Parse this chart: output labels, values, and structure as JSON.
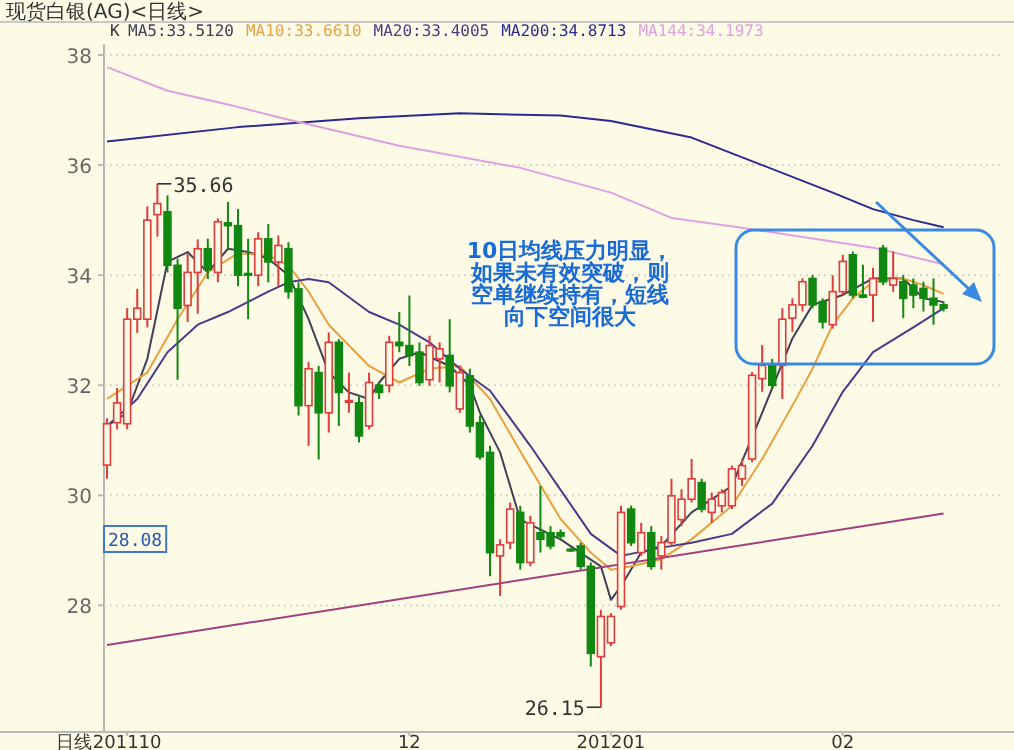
{
  "chart_data": {
    "type": "candlestick",
    "title": "现货白银(AG)<日线>",
    "xlabel": "日线",
    "categories": [
      null,
      null,
      "201110",
      null,
      null,
      null,
      null,
      null,
      null,
      null,
      null,
      null,
      null,
      null,
      null,
      null,
      null,
      null,
      null,
      null,
      null,
      null,
      null,
      null,
      null,
      null,
      null,
      null,
      null,
      null,
      "12",
      null,
      null,
      null,
      null,
      null,
      null,
      null,
      null,
      null,
      null,
      null,
      null,
      null,
      null,
      null,
      null,
      null,
      null,
      null,
      "201201",
      null,
      null,
      null,
      null,
      null,
      null,
      null,
      null,
      null,
      null,
      null,
      null,
      null,
      null,
      null,
      null,
      null,
      null,
      null,
      null,
      null,
      null,
      "02",
      null,
      null,
      null,
      null,
      null,
      null,
      null,
      null,
      null,
      null
    ],
    "ylim": [
      25.7,
      38.2
    ],
    "yticks": [
      28,
      30,
      32,
      34,
      36,
      38
    ],
    "grid": "y",
    "legend": "top left",
    "series": [
      {
        "ohlc": [
          [
            30.55,
            31.4,
            30.3,
            31.3
          ],
          [
            31.32,
            31.95,
            31.2,
            31.68
          ],
          [
            31.3,
            33.4,
            31.2,
            33.2
          ],
          [
            33.2,
            33.75,
            32.95,
            33.4
          ],
          [
            33.2,
            35.25,
            33.05,
            35.0
          ],
          [
            35.1,
            35.66,
            34.7,
            35.3
          ],
          [
            35.15,
            35.45,
            34.05,
            34.18
          ],
          [
            34.18,
            34.3,
            32.1,
            33.4
          ],
          [
            33.45,
            34.4,
            33.15,
            34.05
          ],
          [
            34.05,
            34.65,
            33.3,
            34.48
          ],
          [
            34.48,
            34.66,
            33.93,
            34.1
          ],
          [
            34.05,
            35.03,
            33.87,
            34.97
          ],
          [
            34.95,
            35.33,
            34.48,
            34.9
          ],
          [
            34.9,
            35.2,
            33.8,
            34.0
          ],
          [
            34.03,
            34.66,
            33.2,
            34.0
          ],
          [
            34.0,
            34.78,
            33.8,
            34.66
          ],
          [
            34.66,
            34.93,
            33.87,
            34.24
          ],
          [
            34.24,
            34.72,
            33.8,
            34.54
          ],
          [
            34.48,
            34.6,
            33.57,
            33.7
          ],
          [
            33.75,
            33.87,
            31.45,
            31.63
          ],
          [
            31.63,
            32.42,
            30.9,
            32.3
          ],
          [
            32.23,
            32.35,
            30.65,
            31.5
          ],
          [
            31.5,
            32.96,
            31.14,
            32.78
          ],
          [
            32.78,
            32.84,
            31.26,
            31.87
          ],
          [
            31.7,
            32.23,
            31.5,
            31.72
          ],
          [
            31.68,
            31.8,
            30.96,
            31.08
          ],
          [
            31.26,
            32.23,
            31.2,
            32.05
          ],
          [
            32.0,
            32.05,
            31.75,
            31.87
          ],
          [
            32.0,
            32.9,
            31.87,
            32.78
          ],
          [
            32.78,
            33.33,
            32.6,
            32.72
          ],
          [
            32.72,
            33.63,
            32.35,
            32.54
          ],
          [
            32.6,
            32.78,
            31.99,
            32.05
          ],
          [
            32.1,
            32.9,
            31.99,
            32.72
          ],
          [
            32.48,
            32.78,
            32.05,
            32.66
          ],
          [
            32.54,
            33.2,
            31.87,
            31.99
          ],
          [
            31.57,
            32.35,
            31.5,
            32.23
          ],
          [
            32.17,
            32.3,
            31.14,
            31.26
          ],
          [
            31.32,
            31.45,
            30.65,
            30.7
          ],
          [
            30.78,
            30.9,
            28.53,
            28.96
          ],
          [
            28.9,
            29.2,
            28.17,
            29.1
          ],
          [
            29.14,
            29.87,
            29.02,
            29.75
          ],
          [
            29.69,
            29.81,
            28.65,
            28.78
          ],
          [
            28.78,
            29.63,
            28.71,
            29.5
          ],
          [
            29.32,
            30.17,
            28.96,
            29.2
          ],
          [
            29.32,
            29.44,
            29.02,
            29.08
          ],
          [
            29.32,
            29.38,
            29.2,
            29.26
          ],
          [
            29.02,
            29.05,
            28.97,
            29.0
          ],
          [
            29.08,
            29.14,
            28.65,
            28.71
          ],
          [
            28.71,
            28.78,
            26.89,
            27.13
          ],
          [
            27.07,
            27.92,
            26.15,
            27.8
          ],
          [
            27.32,
            27.86,
            27.26,
            27.8
          ],
          [
            27.98,
            29.81,
            27.92,
            29.69
          ],
          [
            29.75,
            29.81,
            29.08,
            29.14
          ],
          [
            28.96,
            29.5,
            28.9,
            29.32
          ],
          [
            29.32,
            29.44,
            28.65,
            28.71
          ],
          [
            28.9,
            29.26,
            28.65,
            29.14
          ],
          [
            29.14,
            30.3,
            29.08,
            29.99
          ],
          [
            29.56,
            30.11,
            29.44,
            29.93
          ],
          [
            29.93,
            30.66,
            29.87,
            30.3
          ],
          [
            30.23,
            30.3,
            29.69,
            29.75
          ],
          [
            29.69,
            30.05,
            29.5,
            29.93
          ],
          [
            29.81,
            30.11,
            29.69,
            30.05
          ],
          [
            29.81,
            30.54,
            29.75,
            30.48
          ],
          [
            30.3,
            30.66,
            30.17,
            30.54
          ],
          [
            30.66,
            32.24,
            30.6,
            32.18
          ],
          [
            32.12,
            32.73,
            31.88,
            32.36
          ],
          [
            32.36,
            32.48,
            31.94,
            32.0
          ],
          [
            32.36,
            33.4,
            31.75,
            33.2
          ],
          [
            33.22,
            33.58,
            32.97,
            33.46
          ],
          [
            33.46,
            33.94,
            33.34,
            33.88
          ],
          [
            33.94,
            34.0,
            33.4,
            33.46
          ],
          [
            33.52,
            33.58,
            33.03,
            33.15
          ],
          [
            33.1,
            34.0,
            33.03,
            33.7
          ],
          [
            33.7,
            34.37,
            33.64,
            34.25
          ],
          [
            34.37,
            34.43,
            33.58,
            33.64
          ],
          [
            33.64,
            34.19,
            33.58,
            33.6
          ],
          [
            33.64,
            34.13,
            33.15,
            33.94
          ],
          [
            34.49,
            34.55,
            33.82,
            33.88
          ],
          [
            33.82,
            34.43,
            33.7,
            33.94
          ],
          [
            33.88,
            34.0,
            33.22,
            33.58
          ],
          [
            33.82,
            33.94,
            33.4,
            33.64
          ],
          [
            33.76,
            33.88,
            33.34,
            33.58
          ],
          [
            33.58,
            33.94,
            33.1,
            33.46
          ],
          [
            33.46,
            33.52,
            33.34,
            33.4
          ]
        ],
        "colors": [
          "#e03c3c",
          "#e03c3c",
          "#e03c3c",
          "#e03c3c",
          "#e03c3c",
          "#e03c3c",
          "#118811",
          "#118811",
          "#e03c3c",
          "#e03c3c",
          "#118811",
          "#e03c3c",
          "#118811",
          "#118811",
          "#118811",
          "#e03c3c",
          "#118811",
          "#e03c3c",
          "#118811",
          "#118811",
          "#e03c3c",
          "#118811",
          "#e03c3c",
          "#118811",
          "#e03c3c",
          "#118811",
          "#e03c3c",
          "#118811",
          "#e03c3c",
          "#118811",
          "#118811",
          "#118811",
          "#e03c3c",
          "#e03c3c",
          "#118811",
          "#e03c3c",
          "#118811",
          "#118811",
          "#118811",
          "#e03c3c",
          "#e03c3c",
          "#118811",
          "#e03c3c",
          "#118811",
          "#118811",
          "#118811",
          "#118811",
          "#118811",
          "#118811",
          "#e03c3c",
          "#e03c3c",
          "#e03c3c",
          "#118811",
          "#e03c3c",
          "#118811",
          "#e03c3c",
          "#e03c3c",
          "#e03c3c",
          "#e03c3c",
          "#118811",
          "#e03c3c",
          "#e03c3c",
          "#e03c3c",
          "#e03c3c",
          "#e03c3c",
          "#e03c3c",
          "#118811",
          "#e03c3c",
          "#e03c3c",
          "#e03c3c",
          "#118811",
          "#118811",
          "#e03c3c",
          "#e03c3c",
          "#118811",
          "#118811",
          "#e03c3c",
          "#118811",
          "#e03c3c",
          "#118811",
          "#118811",
          "#118811",
          "#118811",
          "#118811"
        ]
      },
      {
        "name": "MA5:33.5120",
        "type": "line",
        "color": "#404058",
        "values": [
          31.26,
          null,
          31.5,
          null,
          32.48,
          null,
          34.24,
          null,
          34.42,
          null,
          34.05,
          null,
          34.48,
          null,
          34.42,
          null,
          34.3,
          null,
          34.0,
          null,
          33.2,
          null,
          32.23,
          null,
          31.87,
          null,
          31.75,
          32.05,
          null,
          32.48,
          null,
          32.6,
          null,
          null,
          32.35,
          null,
          32.0,
          31.5,
          null,
          30.78,
          null,
          29.56,
          null,
          null,
          null,
          29.2,
          null,
          null,
          null,
          28.71,
          28.1,
          28.35,
          null,
          28.96,
          null,
          29.08,
          null,
          null,
          29.69,
          null,
          null,
          null,
          30.17,
          null,
          null,
          31.5,
          null,
          null,
          32.85,
          null,
          33.46,
          null,
          null,
          33.64,
          null,
          null,
          33.94,
          null,
          null,
          33.94,
          null,
          33.58,
          null,
          33.51
        ]
      },
      {
        "name": "MA10:33.6610",
        "type": "line",
        "color": "#e8a040",
        "values": [
          31.75,
          null,
          null,
          null,
          32.23,
          null,
          null,
          33.2,
          null,
          null,
          34.05,
          null,
          null,
          34.4,
          null,
          null,
          34.36,
          null,
          34.18,
          null,
          33.7,
          null,
          33.1,
          null,
          null,
          null,
          32.35,
          null,
          null,
          32.05,
          null,
          null,
          32.3,
          null,
          null,
          32.35,
          null,
          null,
          31.75,
          null,
          null,
          30.8,
          null,
          null,
          null,
          29.57,
          null,
          null,
          28.96,
          null,
          28.65,
          null,
          28.71,
          null,
          null,
          28.84,
          null,
          null,
          29.2,
          null,
          null,
          null,
          29.81,
          null,
          null,
          30.66,
          null,
          null,
          31.63,
          null,
          32.3,
          null,
          33.1,
          null,
          33.58,
          null,
          33.88,
          null,
          null,
          33.94,
          null,
          33.82,
          null,
          33.66
        ]
      },
      {
        "name": "MA20:33.4005",
        "type": "line",
        "color": "#4a3a8a",
        "values": [
          31.26,
          null,
          null,
          31.75,
          null,
          null,
          32.6,
          null,
          null,
          33.1,
          null,
          null,
          33.33,
          null,
          null,
          null,
          33.7,
          null,
          33.87,
          null,
          33.93,
          null,
          33.87,
          null,
          null,
          null,
          33.33,
          null,
          null,
          33.1,
          null,
          null,
          32.78,
          null,
          null,
          32.3,
          null,
          null,
          31.9,
          null,
          null,
          null,
          30.9,
          null,
          null,
          30.1,
          null,
          null,
          29.3,
          null,
          null,
          28.9,
          null,
          null,
          null,
          29.05,
          null,
          null,
          29.14,
          null,
          null,
          null,
          29.3,
          null,
          null,
          null,
          29.85,
          null,
          null,
          null,
          30.9,
          null,
          null,
          31.88,
          null,
          null,
          32.6,
          null,
          null,
          null,
          33.05,
          null,
          null,
          33.4
        ]
      },
      {
        "name": "MA200:34.8713",
        "type": "line",
        "color": "#2a2a90",
        "values": [
          36.43,
          null,
          null,
          null,
          null,
          null,
          null,
          null,
          null,
          null,
          null,
          null,
          null,
          36.69,
          null,
          null,
          null,
          null,
          null,
          null,
          null,
          null,
          null,
          null,
          null,
          36.85,
          null,
          null,
          null,
          null,
          null,
          null,
          null,
          null,
          null,
          36.94,
          null,
          null,
          null,
          null,
          null,
          null,
          null,
          null,
          null,
          36.9,
          null,
          null,
          null,
          null,
          36.8,
          null,
          null,
          null,
          null,
          null,
          null,
          null,
          36.5,
          null,
          null,
          null,
          null,
          null,
          null,
          36.0,
          null,
          null,
          null,
          null,
          null,
          null,
          35.5,
          null,
          null,
          null,
          35.2,
          null,
          null,
          null,
          35.0,
          null,
          null,
          34.87
        ]
      },
      {
        "name": "MA144:34.1973",
        "type": "line",
        "color": "#e0a0e0",
        "values": [
          37.78,
          null,
          null,
          null,
          null,
          null,
          37.35,
          null,
          null,
          null,
          null,
          null,
          37.1,
          null,
          null,
          null,
          null,
          36.87,
          null,
          null,
          null,
          null,
          null,
          null,
          null,
          null,
          null,
          null,
          null,
          36.35,
          null,
          null,
          null,
          null,
          null,
          null,
          null,
          null,
          null,
          null,
          null,
          35.95,
          null,
          null,
          null,
          null,
          null,
          null,
          null,
          null,
          35.5,
          null,
          null,
          null,
          null,
          null,
          35.04,
          null,
          null,
          null,
          null,
          null,
          null,
          34.86,
          null,
          null,
          null,
          null,
          null,
          null,
          null,
          null,
          null,
          null,
          null,
          null,
          34.5,
          null,
          null,
          null,
          null,
          null,
          null,
          34.2
        ]
      },
      {
        "type": "line",
        "color": "#a04080",
        "values": [
          27.28,
          null,
          null,
          null,
          null,
          null,
          null,
          null,
          null,
          null,
          null,
          null,
          null,
          null,
          null,
          null,
          null,
          null,
          null,
          null,
          null,
          null,
          null,
          null,
          null,
          null,
          null,
          null,
          null,
          null,
          null,
          null,
          null,
          null,
          null,
          null,
          null,
          null,
          null,
          null,
          null,
          null,
          null,
          null,
          null,
          null,
          null,
          null,
          null,
          null,
          null,
          null,
          null,
          null,
          null,
          null,
          null,
          null,
          null,
          null,
          null,
          null,
          null,
          null,
          null,
          null,
          null,
          null,
          null,
          null,
          null,
          null,
          null,
          null,
          null,
          null,
          null,
          null,
          null,
          null,
          null,
          null,
          null,
          29.67
        ]
      }
    ],
    "annotations": [
      "K",
      "35.66",
      "26.15",
      "28.08",
      "10日均线压力明显，如果未有效突破，则空单继续持有，短线向下空间很大"
    ]
  }
}
